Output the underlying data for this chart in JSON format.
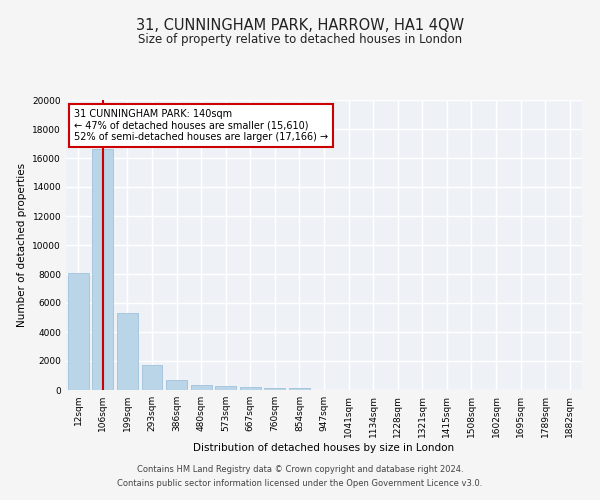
{
  "title": "31, CUNNINGHAM PARK, HARROW, HA1 4QW",
  "subtitle": "Size of property relative to detached houses in London",
  "xlabel": "Distribution of detached houses by size in London",
  "ylabel": "Number of detached properties",
  "categories": [
    "12sqm",
    "106sqm",
    "199sqm",
    "293sqm",
    "386sqm",
    "480sqm",
    "573sqm",
    "667sqm",
    "760sqm",
    "854sqm",
    "947sqm",
    "1041sqm",
    "1134sqm",
    "1228sqm",
    "1321sqm",
    "1415sqm",
    "1508sqm",
    "1602sqm",
    "1695sqm",
    "1789sqm",
    "1882sqm"
  ],
  "values": [
    8050,
    16600,
    5300,
    1750,
    700,
    350,
    270,
    230,
    160,
    130,
    0,
    0,
    0,
    0,
    0,
    0,
    0,
    0,
    0,
    0,
    0
  ],
  "bar_color": "#bad4e8",
  "bar_edge_color": "#96bcd8",
  "vline_x": 1.0,
  "vline_color": "#cc0000",
  "annotation_title": "31 CUNNINGHAM PARK: 140sqm",
  "annotation_line1": "← 47% of detached houses are smaller (15,610)",
  "annotation_line2": "52% of semi-detached houses are larger (17,166) →",
  "annotation_box_color": "#cc0000",
  "ylim": [
    0,
    20000
  ],
  "yticks": [
    0,
    2000,
    4000,
    6000,
    8000,
    10000,
    12000,
    14000,
    16000,
    18000,
    20000
  ],
  "footer_line1": "Contains HM Land Registry data © Crown copyright and database right 2024.",
  "footer_line2": "Contains public sector information licensed under the Open Government Licence v3.0.",
  "bg_color": "#eef2f7",
  "grid_color": "#ffffff",
  "fig_bg_color": "#f5f5f5",
  "title_fontsize": 10.5,
  "subtitle_fontsize": 8.5,
  "axis_label_fontsize": 7.5,
  "tick_fontsize": 6.5,
  "annotation_fontsize": 7.0,
  "footer_fontsize": 6.0
}
